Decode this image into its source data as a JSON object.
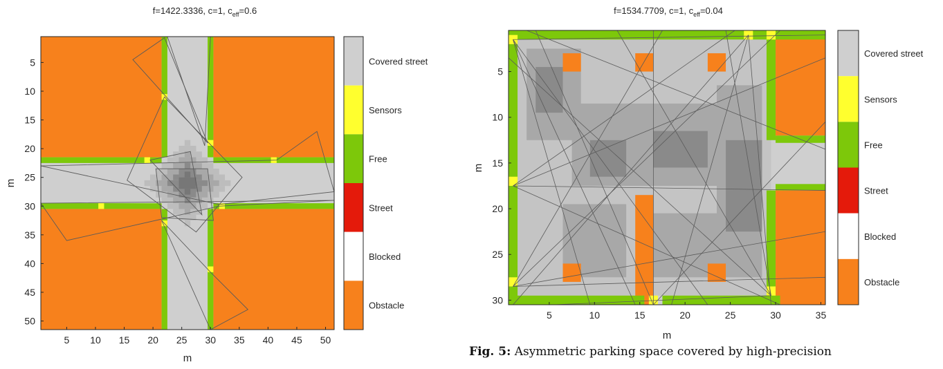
{
  "colors": {
    "obstacle": "#f7811c",
    "blocked": "#ffffff",
    "street": "#e41a0b",
    "free": "#7dc80a",
    "sensors": "#ffff2e",
    "covered": "#cfcfcf",
    "covered_dark": "#a8a8a8",
    "covered_darker": "#8a8a8a",
    "outline": "#5a5a5a"
  },
  "colorbar_labels": [
    "Covered street",
    "Sensors",
    "Free",
    "Street",
    "Blocked",
    "Obstacle"
  ],
  "chart_data": [
    {
      "type": "heatmap",
      "title_text": "f=1422.3336,       c=1,      c",
      "title_sub": "eff",
      "title_tail": "=0.6",
      "xlabel": "m",
      "ylabel": "m",
      "xlim": [
        0.5,
        51.5
      ],
      "ylim": [
        0.5,
        51.5
      ],
      "xticks": [
        5,
        10,
        15,
        20,
        25,
        30,
        35,
        40,
        45,
        50
      ],
      "yticks": [
        5,
        10,
        15,
        20,
        25,
        30,
        35,
        40,
        45,
        50
      ],
      "y_direction": "down",
      "legend": "colorbar-right"
    },
    {
      "type": "heatmap",
      "title_text": "f=1534.7709,       c=1,      c",
      "title_sub": "eff",
      "title_tail": "=0.04",
      "xlabel": "m",
      "ylabel": "m",
      "xlim": [
        0.5,
        35.5
      ],
      "ylim": [
        0.5,
        30.5
      ],
      "xticks": [
        5,
        10,
        15,
        20,
        25,
        30,
        35
      ],
      "yticks": [
        5,
        10,
        15,
        20,
        25,
        30
      ],
      "y_direction": "down",
      "legend": "colorbar-right"
    }
  ],
  "caption": {
    "label": "Fig. 5:",
    "text": " Asymmetric parking space covered by high-precision"
  }
}
